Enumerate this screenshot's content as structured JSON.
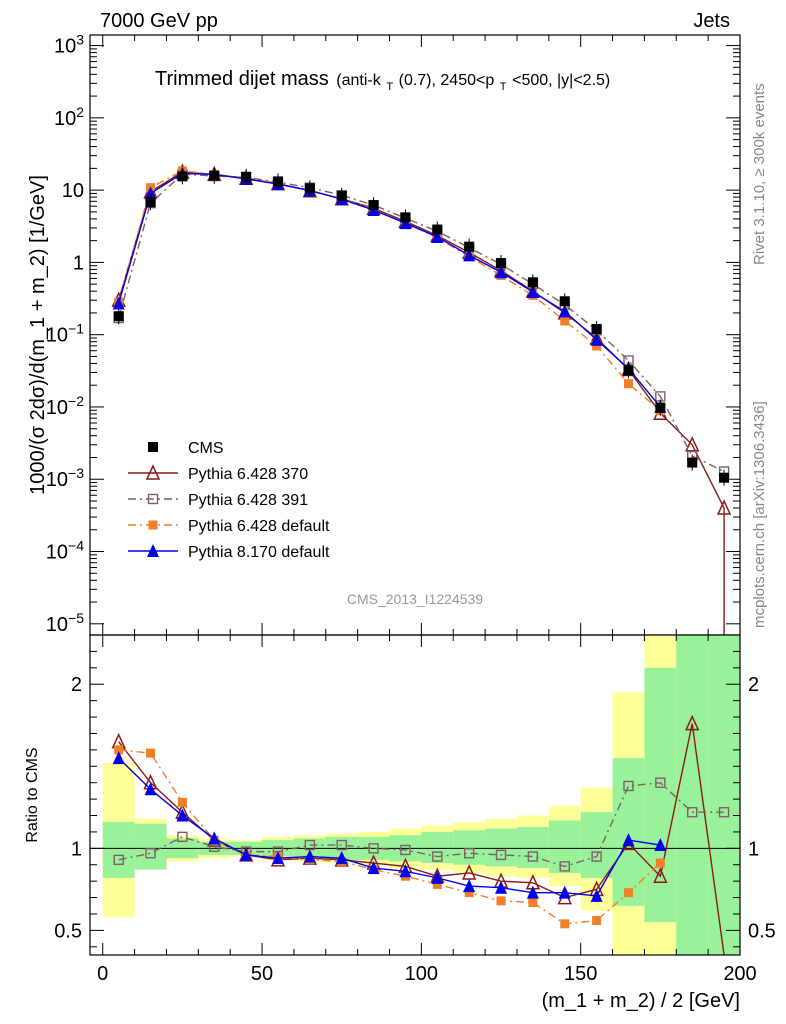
{
  "header": {
    "left": "7000 GeV pp",
    "right": "Jets"
  },
  "side_labels": {
    "top": "Rivet 3.1.10, ≥ 300k events",
    "bottom": "mcplots.cern.ch [arXiv:1306.3436]"
  },
  "watermark": "CMS_2013_I1224539",
  "chart_data": {
    "type": "line",
    "title": "Trimmed dijet mass",
    "title_detail": {
      "prefix": "(anti-k",
      "sub1": "T",
      "mid1": "(0.7), 2450<p",
      "sub2": "T",
      "suffix": "<500, |y|<2.5)"
    },
    "xlabel": "(m_1 + m_2) / 2 [GeV]",
    "ylabel": "1000/(σ 2dσ)/d(m_1 + m_2) [1/GeV]",
    "ratio_ylabel": "Ratio to CMS",
    "xlim": [
      -4,
      200
    ],
    "ylim_log": [
      7e-06,
      1400
    ],
    "ratio_ylim": [
      0.35,
      2.3
    ],
    "yscale": "log",
    "x_ticks": [
      "0",
      "50",
      "100",
      "150",
      "200"
    ],
    "y_ticks": [
      "10^-5",
      "10^-4",
      "10^-3",
      "10^-2",
      "10^-1",
      "1",
      "10",
      "10^2",
      "10^3"
    ],
    "y_tick_labels": [
      {
        "base": "10",
        "exp": "−5",
        "v": 1e-05
      },
      {
        "base": "10",
        "exp": "−4",
        "v": 0.0001
      },
      {
        "base": "10",
        "exp": "−3",
        "v": 0.001
      },
      {
        "base": "10",
        "exp": "−2",
        "v": 0.01
      },
      {
        "base": "10",
        "exp": "−1",
        "v": 0.1
      },
      {
        "base": "1",
        "exp": "",
        "v": 1
      },
      {
        "base": "10",
        "exp": "",
        "v": 10
      },
      {
        "base": "10",
        "exp": "2",
        "v": 100
      },
      {
        "base": "10",
        "exp": "3",
        "v": 1000
      }
    ],
    "ratio_ticks": [
      "0.5",
      "1",
      "2"
    ],
    "ratio_tick_values": [
      0.5,
      1,
      2
    ],
    "legend_position": "lower-left",
    "x": [
      5,
      15,
      25,
      35,
      45,
      55,
      65,
      75,
      85,
      95,
      105,
      115,
      125,
      135,
      145,
      155,
      165,
      175,
      185,
      195
    ],
    "data": {
      "name": "CMS",
      "values": [
        0.18,
        6.8,
        15.5,
        15.8,
        15.3,
        13.2,
        10.6,
        8.3,
        6.2,
        4.2,
        2.85,
        1.65,
        0.98,
        0.53,
        0.29,
        0.12,
        0.032,
        0.0098,
        0.0017,
        0.00105
      ],
      "stat_band": [
        [
          0.82,
          1.16
        ],
        [
          0.87,
          1.15
        ],
        [
          0.94,
          1.06
        ],
        [
          0.96,
          1.04
        ],
        [
          0.96,
          1.04
        ],
        [
          0.95,
          1.05
        ],
        [
          0.94,
          1.06
        ],
        [
          0.93,
          1.07
        ],
        [
          0.93,
          1.07
        ],
        [
          0.92,
          1.08
        ],
        [
          0.91,
          1.1
        ],
        [
          0.9,
          1.11
        ],
        [
          0.89,
          1.12
        ],
        [
          0.88,
          1.13
        ],
        [
          0.85,
          1.17
        ],
        [
          0.82,
          1.22
        ],
        [
          0.65,
          1.55
        ],
        [
          0.55,
          2.1
        ],
        [
          0.3,
          2.4
        ],
        [
          0.3,
          2.4
        ]
      ],
      "total_band": [
        [
          0.58,
          1.52
        ],
        [
          0.9,
          1.18
        ],
        [
          0.92,
          1.08
        ],
        [
          0.94,
          1.06
        ],
        [
          0.95,
          1.05
        ],
        [
          0.93,
          1.07
        ],
        [
          0.92,
          1.08
        ],
        [
          0.91,
          1.09
        ],
        [
          0.9,
          1.1
        ],
        [
          0.88,
          1.12
        ],
        [
          0.87,
          1.14
        ],
        [
          0.85,
          1.16
        ],
        [
          0.83,
          1.18
        ],
        [
          0.82,
          1.2
        ],
        [
          0.77,
          1.26
        ],
        [
          0.62,
          1.37
        ],
        [
          0.35,
          1.95
        ],
        [
          0.3,
          2.4
        ],
        [
          0.3,
          2.4
        ],
        [
          0.3,
          2.4
        ]
      ]
    },
    "series": [
      {
        "name": "Pythia 6.428 370",
        "color": "#8b1a1a",
        "marker": "triangle-open",
        "dash": "solid",
        "values": [
          0.3,
          9.5,
          17.8,
          16.5,
          14.6,
          12.3,
          9.8,
          7.6,
          5.6,
          3.7,
          2.35,
          1.37,
          0.77,
          0.4,
          0.2,
          0.09,
          0.033,
          0.0082,
          0.003,
          0.0004
        ],
        "ratio": [
          1.65,
          1.4,
          1.22,
          1.05,
          0.96,
          0.93,
          0.94,
          0.93,
          0.91,
          0.89,
          0.83,
          0.85,
          0.8,
          0.79,
          0.7,
          0.75,
          1.03,
          0.83,
          1.76,
          0.34
        ]
      },
      {
        "name": "Pythia 6.428 391",
        "color": "#7f5f66",
        "marker": "square-open",
        "dash": "dashdot",
        "values": [
          0.17,
          6.6,
          16.6,
          15.7,
          15.0,
          12.9,
          10.8,
          8.5,
          6.2,
          4.1,
          2.7,
          1.6,
          0.94,
          0.5,
          0.26,
          0.115,
          0.044,
          0.014,
          0.0021,
          0.00128
        ],
        "ratio": [
          0.93,
          0.97,
          1.07,
          1.01,
          0.98,
          0.98,
          1.02,
          1.02,
          1.0,
          0.99,
          0.95,
          0.97,
          0.96,
          0.95,
          0.89,
          0.95,
          1.38,
          1.4,
          1.22,
          1.22
        ]
      },
      {
        "name": "Pythia 6.428 default",
        "color": "#f07f2a",
        "marker": "square",
        "dash": "dashdot",
        "values": [
          0.28,
          10.8,
          18.5,
          16.5,
          14.6,
          12.4,
          9.9,
          7.6,
          5.4,
          3.5,
          2.2,
          1.2,
          0.66,
          0.35,
          0.155,
          0.07,
          0.021,
          0.0089,
          0,
          0
        ],
        "ratio": [
          1.6,
          1.58,
          1.28,
          1.05,
          0.96,
          0.95,
          0.93,
          0.92,
          0.87,
          0.83,
          0.78,
          0.73,
          0.68,
          0.67,
          0.54,
          0.56,
          0.73,
          0.91,
          null,
          null
        ]
      },
      {
        "name": "Pythia 8.170 default",
        "color": "#0000ee",
        "marker": "triangle",
        "dash": "solid",
        "values": [
          0.27,
          9.0,
          17.0,
          16.5,
          14.3,
          12.1,
          9.9,
          7.5,
          5.3,
          3.5,
          2.25,
          1.25,
          0.73,
          0.39,
          0.21,
          0.085,
          0.034,
          0.01,
          0,
          0
        ],
        "ratio": [
          1.55,
          1.36,
          1.2,
          1.06,
          0.96,
          0.94,
          0.95,
          0.94,
          0.88,
          0.86,
          0.82,
          0.77,
          0.76,
          0.73,
          0.73,
          0.71,
          1.05,
          1.02,
          null,
          null
        ]
      }
    ]
  }
}
